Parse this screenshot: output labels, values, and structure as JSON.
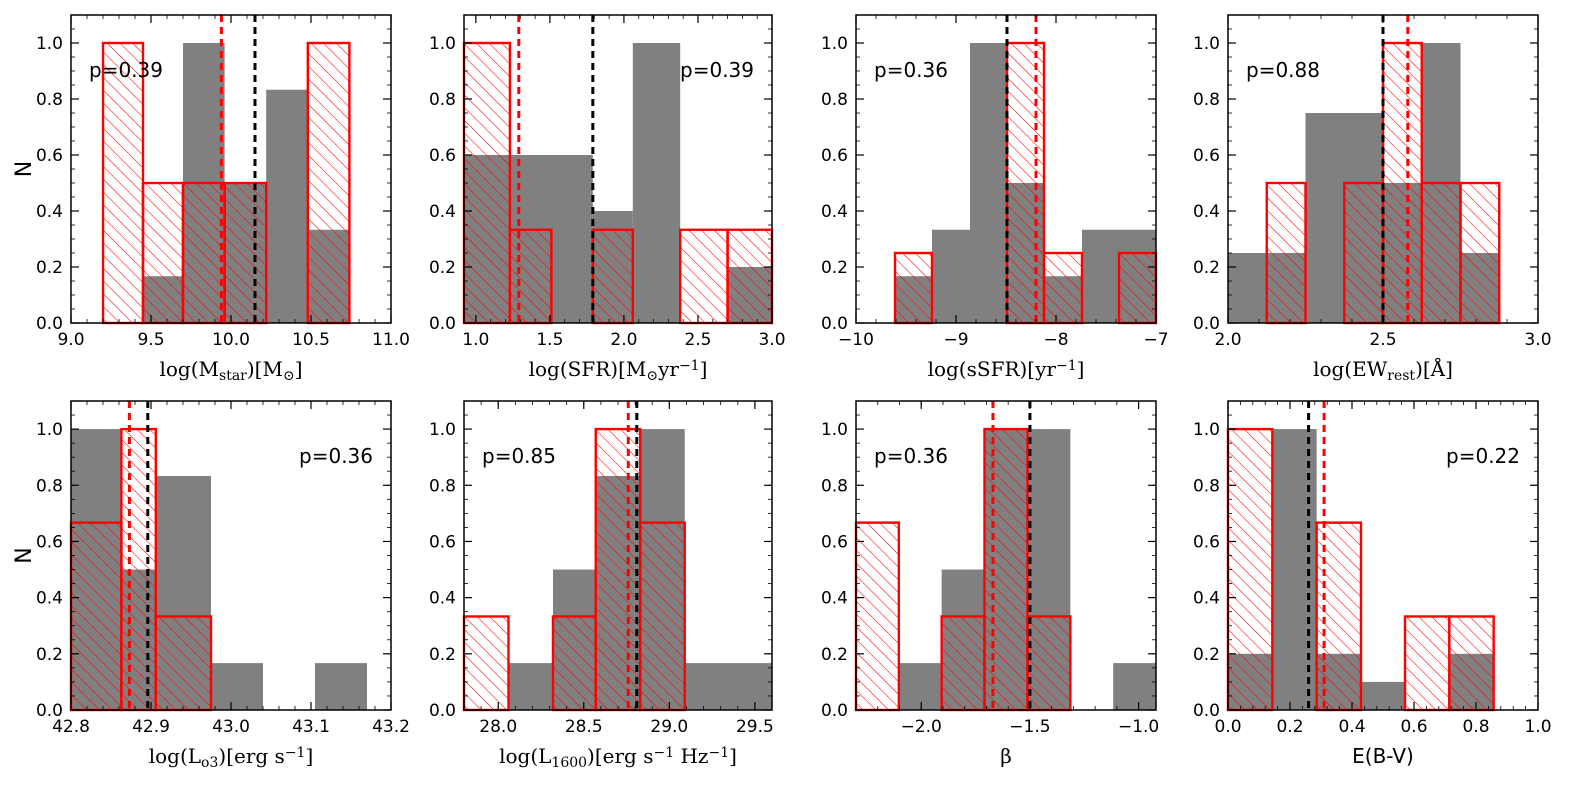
{
  "figure": {
    "ylabel": "N"
  },
  "colors": {
    "gray": "#808080",
    "red": "#ff0000",
    "frame": "#000000"
  },
  "chart_data": [
    {
      "type": "bar",
      "title": "",
      "xlabel": "log(M_star)[M_⊙]",
      "xlabel_parts": [
        [
          "log(M",
          ""
        ],
        [
          "star",
          "sub"
        ],
        [
          ")[M",
          ""
        ],
        [
          "⊙",
          "sub"
        ],
        [
          "]",
          ""
        ]
      ],
      "ylabel": "N",
      "xlim": [
        9.0,
        11.0
      ],
      "ylim": [
        0.0,
        1.1
      ],
      "xticks": [
        "9.0",
        "9.5",
        "10.0",
        "10.5",
        "11.0"
      ],
      "yticks": [
        "0.0",
        "0.2",
        "0.4",
        "0.6",
        "0.8",
        "1.0"
      ],
      "annotation": "p=0.39",
      "annotation_pos": "top-left",
      "series": [
        {
          "name": "gray",
          "bins": [
            [
              9.45,
              9.7,
              0.167
            ],
            [
              9.7,
              9.96,
              1.0
            ],
            [
              9.96,
              10.22,
              0.5
            ],
            [
              10.22,
              10.48,
              0.833
            ],
            [
              10.48,
              10.74,
              0.333
            ]
          ]
        },
        {
          "name": "red",
          "bins": [
            [
              9.2,
              9.45,
              1.0
            ],
            [
              9.45,
              9.7,
              0.5
            ],
            [
              9.7,
              9.96,
              0.5
            ],
            [
              9.96,
              10.22,
              0.5
            ],
            [
              10.48,
              10.74,
              1.0
            ]
          ]
        }
      ],
      "medians": {
        "red": 9.94,
        "black": 10.15
      }
    },
    {
      "type": "bar",
      "title": "",
      "xlabel": "log(SFR)[M_⊙yr^-1]",
      "xlabel_parts": [
        [
          "log(SFR)[M",
          ""
        ],
        [
          "⊙",
          "sub"
        ],
        [
          "yr",
          ""
        ],
        [
          "−1",
          "sup"
        ],
        [
          "]",
          ""
        ]
      ],
      "ylabel": "",
      "xlim": [
        0.92,
        3.0
      ],
      "ylim": [
        0.0,
        1.1
      ],
      "xticks": [
        "1.0",
        "1.5",
        "2.0",
        "2.5",
        "3.0"
      ],
      "yticks": [
        "0.0",
        "0.2",
        "0.4",
        "0.6",
        "0.8",
        "1.0"
      ],
      "annotation": "p=0.39",
      "annotation_pos": "top-right",
      "series": [
        {
          "name": "gray",
          "bins": [
            [
              0.92,
              1.23,
              0.6
            ],
            [
              1.23,
              1.79,
              0.6
            ],
            [
              1.79,
              2.06,
              0.4
            ],
            [
              2.06,
              2.38,
              1.0
            ],
            [
              2.7,
              3.0,
              0.2
            ]
          ]
        },
        {
          "name": "red",
          "bins": [
            [
              0.92,
              1.23,
              1.0
            ],
            [
              1.23,
              1.51,
              0.333
            ],
            [
              1.79,
              2.06,
              0.333
            ],
            [
              2.38,
              2.7,
              0.333
            ],
            [
              2.7,
              3.0,
              0.333
            ]
          ]
        }
      ],
      "medians": {
        "red": 1.29,
        "black": 1.79
      }
    },
    {
      "type": "bar",
      "title": "",
      "xlabel": "log(sSFR)[yr^-1]",
      "xlabel_parts": [
        [
          "log(sSFR)[yr",
          ""
        ],
        [
          "−1",
          "sup"
        ],
        [
          "]",
          ""
        ]
      ],
      "ylabel": "",
      "xlim": [
        -10.0,
        -7.0
      ],
      "ylim": [
        0.0,
        1.1
      ],
      "xticks": [
        "−10",
        "−9",
        "−8",
        "−7"
      ],
      "yticks": [
        "0.0",
        "0.2",
        "0.4",
        "0.6",
        "0.8",
        "1.0"
      ],
      "annotation": "p=0.36",
      "annotation_pos": "top-left",
      "series": [
        {
          "name": "gray",
          "bins": [
            [
              -9.61,
              -9.24,
              0.167
            ],
            [
              -9.24,
              -8.86,
              0.333
            ],
            [
              -8.86,
              -8.49,
              1.0
            ],
            [
              -8.49,
              -8.12,
              0.5
            ],
            [
              -8.12,
              -7.74,
              0.167
            ],
            [
              -7.74,
              -7.0,
              0.333
            ]
          ]
        },
        {
          "name": "red",
          "bins": [
            [
              -9.61,
              -9.24,
              0.25
            ],
            [
              -8.49,
              -8.12,
              1.0
            ],
            [
              -8.12,
              -7.74,
              0.25
            ],
            [
              -7.37,
              -7.0,
              0.25
            ]
          ]
        }
      ],
      "medians": {
        "red": -8.2,
        "black": -8.49
      }
    },
    {
      "type": "bar",
      "title": "",
      "xlabel": "log(EW_rest)[Å]",
      "xlabel_parts": [
        [
          "log(EW",
          ""
        ],
        [
          "rest",
          "sub"
        ],
        [
          ")[Å]",
          ""
        ]
      ],
      "ylabel": "",
      "xlim": [
        2.0,
        3.0
      ],
      "ylim": [
        0.0,
        1.1
      ],
      "xticks": [
        "2.0",
        "2.5",
        "3.0"
      ],
      "yticks": [
        "0.0",
        "0.2",
        "0.4",
        "0.6",
        "0.8",
        "1.0"
      ],
      "annotation": "p=0.88",
      "annotation_pos": "top-left",
      "series": [
        {
          "name": "gray",
          "bins": [
            [
              2.0,
              2.125,
              0.25
            ],
            [
              2.125,
              2.25,
              0.25
            ],
            [
              2.25,
              2.5,
              0.75
            ],
            [
              2.5,
              2.625,
              0.5
            ],
            [
              2.625,
              2.75,
              1.0
            ],
            [
              2.75,
              2.875,
              0.25
            ]
          ]
        },
        {
          "name": "red",
          "bins": [
            [
              2.125,
              2.25,
              0.5
            ],
            [
              2.375,
              2.5,
              0.5
            ],
            [
              2.5,
              2.625,
              1.0
            ],
            [
              2.625,
              2.75,
              0.5
            ],
            [
              2.75,
              2.875,
              0.5
            ]
          ]
        }
      ],
      "medians": {
        "red": 2.58,
        "black": 2.5
      }
    },
    {
      "type": "bar",
      "title": "",
      "xlabel": "log(L_o3)[erg s^-1]",
      "xlabel_parts": [
        [
          "log(L",
          ""
        ],
        [
          "o3",
          "sub"
        ],
        [
          ")[erg s",
          ""
        ],
        [
          "−1",
          "sup"
        ],
        [
          "]",
          ""
        ]
      ],
      "ylabel": "N",
      "xlim": [
        42.8,
        43.2
      ],
      "ylim": [
        0.0,
        1.1
      ],
      "xticks": [
        "42.8",
        "42.9",
        "43.0",
        "43.1",
        "43.2"
      ],
      "yticks": [
        "0.0",
        "0.2",
        "0.4",
        "0.6",
        "0.8",
        "1.0"
      ],
      "annotation": "p=0.36",
      "annotation_pos": "top-right",
      "series": [
        {
          "name": "gray",
          "bins": [
            [
              42.8,
              42.863,
              1.0
            ],
            [
              42.863,
              42.906,
              0.5
            ],
            [
              42.906,
              42.975,
              0.833
            ],
            [
              42.975,
              43.04,
              0.167
            ],
            [
              43.105,
              43.17,
              0.167
            ]
          ]
        },
        {
          "name": "red",
          "bins": [
            [
              42.8,
              42.863,
              0.667
            ],
            [
              42.863,
              42.906,
              1.0
            ],
            [
              42.906,
              42.975,
              0.333
            ]
          ]
        }
      ],
      "medians": {
        "red": 42.873,
        "black": 42.896
      }
    },
    {
      "type": "bar",
      "title": "",
      "xlabel": "log(L_1600)[erg s^-1 Hz^-1]",
      "xlabel_parts": [
        [
          "log(L",
          ""
        ],
        [
          "1600",
          "sub"
        ],
        [
          ")[erg s",
          ""
        ],
        [
          "−1",
          "sup"
        ],
        [
          " Hz",
          ""
        ],
        [
          "−1",
          "sup"
        ],
        [
          "]",
          ""
        ]
      ],
      "ylabel": "",
      "xlim": [
        27.8,
        29.6
      ],
      "ylim": [
        0.0,
        1.1
      ],
      "xticks": [
        "28.0",
        "28.5",
        "29.0",
        "29.5"
      ],
      "yticks": [
        "0.0",
        "0.2",
        "0.4",
        "0.6",
        "0.8",
        "1.0"
      ],
      "annotation": "p=0.85",
      "annotation_pos": "top-left",
      "series": [
        {
          "name": "gray",
          "bins": [
            [
              28.06,
              28.32,
              0.167
            ],
            [
              28.32,
              28.57,
              0.5
            ],
            [
              28.57,
              28.83,
              0.833
            ],
            [
              28.83,
              29.09,
              1.0
            ],
            [
              29.09,
              29.34,
              0.167
            ],
            [
              29.34,
              29.6,
              0.167
            ]
          ]
        },
        {
          "name": "red",
          "bins": [
            [
              27.8,
              28.06,
              0.333
            ],
            [
              28.32,
              28.57,
              0.333
            ],
            [
              28.57,
              28.83,
              1.0
            ],
            [
              28.83,
              29.09,
              0.667
            ]
          ]
        }
      ],
      "medians": {
        "red": 28.76,
        "black": 28.81
      }
    },
    {
      "type": "bar",
      "title": "",
      "xlabel": "β",
      "xlabel_parts": [
        [
          "β",
          ""
        ]
      ],
      "ylabel": "",
      "xlim": [
        -2.3,
        -0.92
      ],
      "ylim": [
        0.0,
        1.1
      ],
      "xticks": [
        "−2.0",
        "−1.5",
        "−1.0"
      ],
      "yticks": [
        "0.0",
        "0.2",
        "0.4",
        "0.6",
        "0.8",
        "1.0"
      ],
      "annotation": "p=0.36",
      "annotation_pos": "top-left",
      "series": [
        {
          "name": "gray",
          "bins": [
            [
              -2.103,
              -1.906,
              0.167
            ],
            [
              -1.906,
              -1.709,
              0.5
            ],
            [
              -1.709,
              -1.511,
              1.0
            ],
            [
              -1.511,
              -1.314,
              1.0
            ],
            [
              -1.117,
              -0.92,
              0.167
            ]
          ]
        },
        {
          "name": "red",
          "bins": [
            [
              -2.3,
              -2.103,
              0.667
            ],
            [
              -1.906,
              -1.709,
              0.333
            ],
            [
              -1.709,
              -1.511,
              1.0
            ],
            [
              -1.511,
              -1.314,
              0.333
            ]
          ]
        }
      ],
      "medians": {
        "red": -1.67,
        "black": -1.5
      }
    },
    {
      "type": "bar",
      "title": "",
      "xlabel": "E(B-V)",
      "xlabel_parts": [
        [
          "E(B-V)",
          ""
        ]
      ],
      "ylabel": "",
      "xlim": [
        0.0,
        1.0
      ],
      "ylim": [
        0.0,
        1.1
      ],
      "xticks": [
        "0.0",
        "0.2",
        "0.4",
        "0.6",
        "0.8",
        "1.0"
      ],
      "yticks": [
        "0.0",
        "0.2",
        "0.4",
        "0.6",
        "0.8",
        "1.0"
      ],
      "annotation": "p=0.22",
      "annotation_pos": "top-right",
      "series": [
        {
          "name": "gray",
          "bins": [
            [
              0.0,
              0.143,
              0.2
            ],
            [
              0.143,
              0.286,
              1.0
            ],
            [
              0.286,
              0.429,
              0.2
            ],
            [
              0.429,
              0.571,
              0.1
            ],
            [
              0.714,
              0.857,
              0.2
            ]
          ]
        },
        {
          "name": "red",
          "bins": [
            [
              0.0,
              0.143,
              1.0
            ],
            [
              0.286,
              0.429,
              0.667
            ],
            [
              0.571,
              0.714,
              0.333
            ],
            [
              0.714,
              0.857,
              0.333
            ]
          ]
        }
      ],
      "medians": {
        "red": 0.31,
        "black": 0.26
      }
    }
  ]
}
